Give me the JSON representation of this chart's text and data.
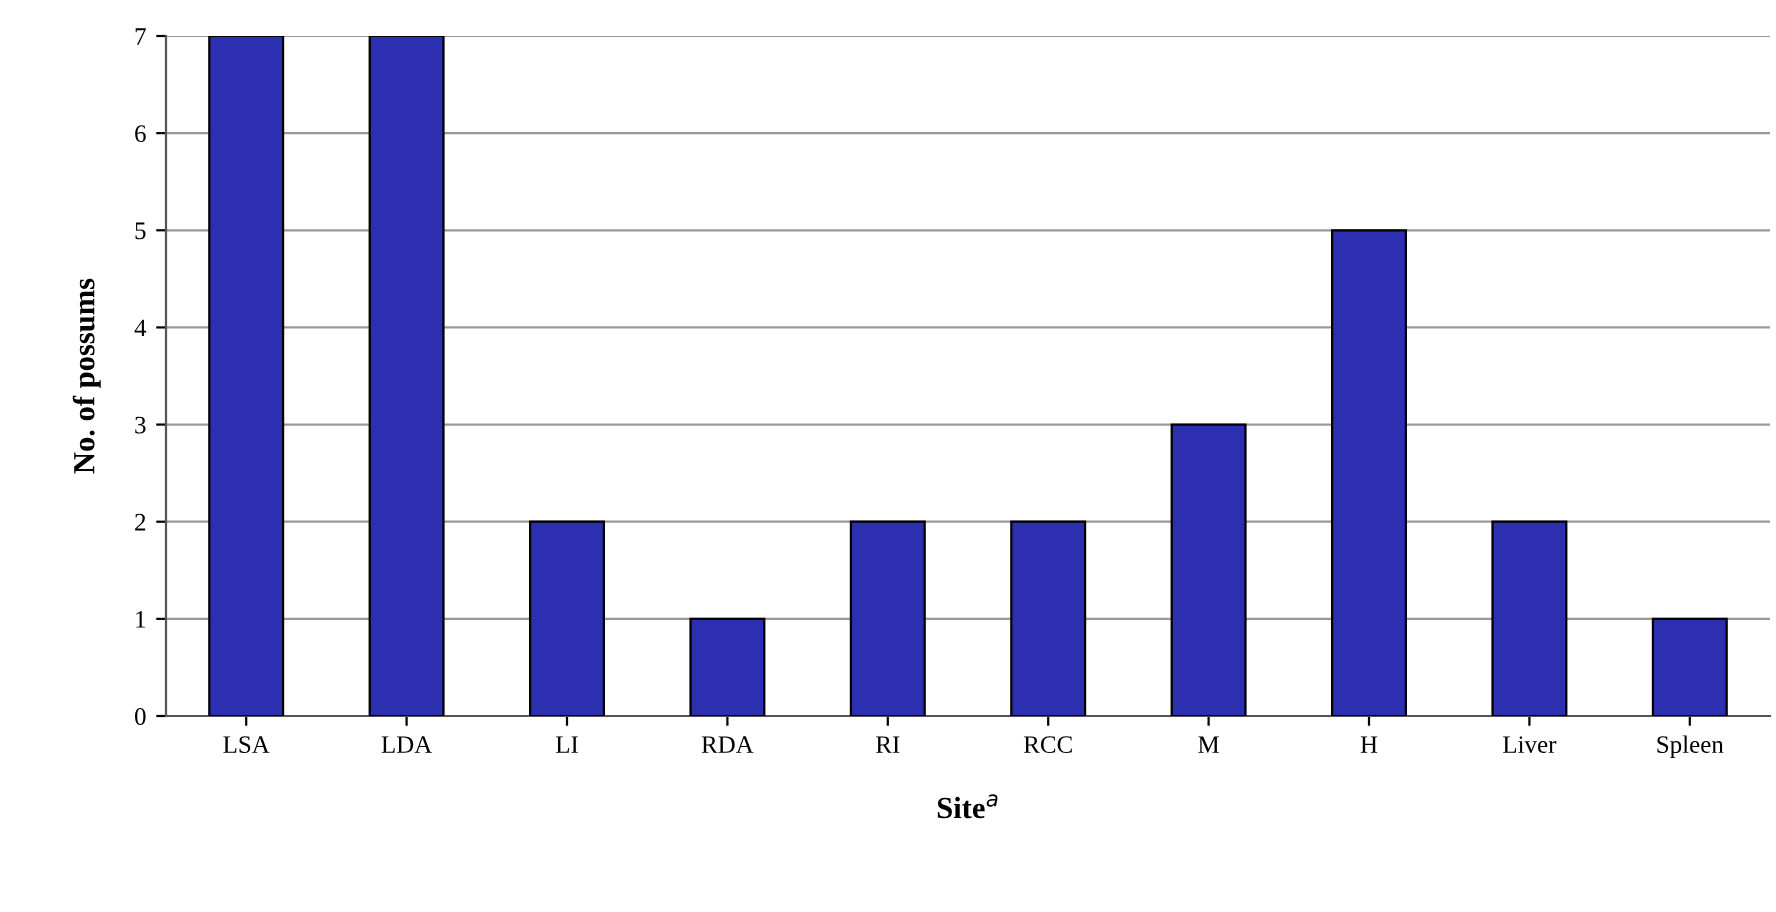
{
  "chart_data": {
    "type": "bar",
    "xlabel": "Site$^{a}$",
    "ylabel": "No. of possums",
    "categories": [
      "LSA",
      "LDA",
      "LI",
      "RDA",
      "RI",
      "RCC",
      "M",
      "H",
      "Liver",
      "Spleen"
    ],
    "values": [
      7,
      7,
      2,
      1,
      2,
      2,
      3,
      5,
      2,
      1
    ],
    "color": "#2b2fb0",
    "ylim": [
      0,
      7
    ],
    "yticks": [
      0,
      1,
      2,
      3,
      4,
      5,
      6,
      7
    ],
    "grid": "y"
  }
}
